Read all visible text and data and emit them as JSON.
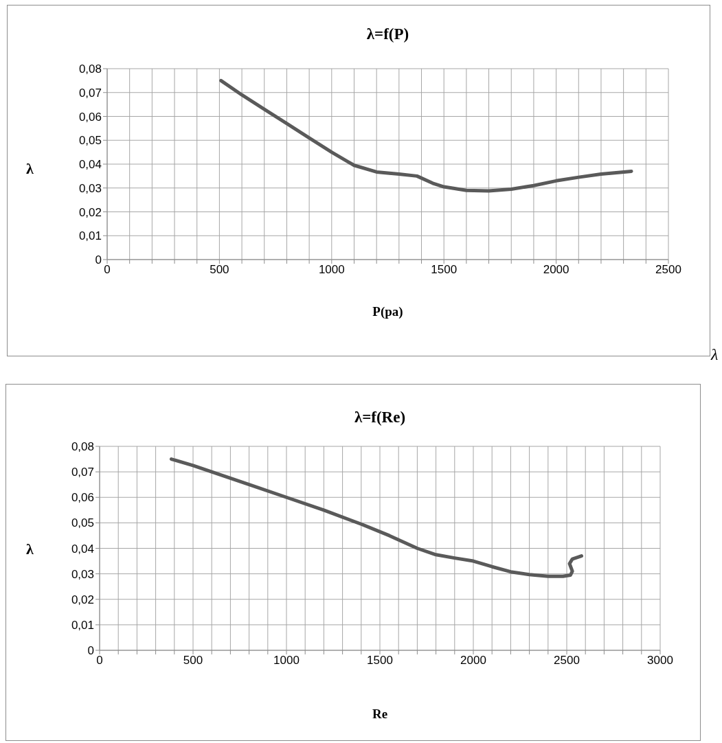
{
  "chart_data": [
    {
      "type": "line",
      "title": "λ=f(P)",
      "xlabel": "P(pa)",
      "ylabel": "λ",
      "annotations": [
        "λ"
      ],
      "color": "#5a5a5a",
      "marker": "none",
      "grid": true,
      "x": [
        507,
        600,
        700,
        800,
        900,
        1000,
        1100,
        1200,
        1300,
        1380,
        1450,
        1500,
        1600,
        1700,
        1800,
        1900,
        2000,
        2100,
        2200,
        2335
      ],
      "values": [
        0.075,
        0.069,
        0.063,
        0.057,
        0.051,
        0.045,
        0.0395,
        0.0367,
        0.0358,
        0.035,
        0.032,
        0.0305,
        0.029,
        0.0288,
        0.0295,
        0.031,
        0.033,
        0.0345,
        0.0358,
        0.037
      ],
      "xlim": [
        0,
        2500
      ],
      "xticks": [
        0,
        {
          "value": 100,
          "label": null
        },
        {
          "value": 200,
          "label": null
        },
        {
          "value": 300,
          "label": null
        },
        {
          "value": 400,
          "label": null
        },
        500,
        {
          "value": 600,
          "label": null
        },
        {
          "value": 700,
          "label": null
        },
        {
          "value": 800,
          "label": null
        },
        {
          "value": 900,
          "label": null
        },
        1000,
        {
          "value": 1100,
          "label": null
        },
        {
          "value": 1200,
          "label": null
        },
        {
          "value": 1300,
          "label": null
        },
        {
          "value": 1400,
          "label": null
        },
        1500,
        {
          "value": 1600,
          "label": null
        },
        {
          "value": 1700,
          "label": null
        },
        {
          "value": 1800,
          "label": null
        },
        {
          "value": 1900,
          "label": null
        },
        2000,
        {
          "value": 2100,
          "label": null
        },
        {
          "value": 2200,
          "label": null
        },
        {
          "value": 2300,
          "label": null
        },
        {
          "value": 2400,
          "label": null
        },
        2500
      ],
      "ylim": [
        0,
        0.08
      ],
      "yticks": [
        0,
        {
          "value": 0.01,
          "label": "0,01"
        },
        {
          "value": 0.02,
          "label": "0,02"
        },
        {
          "value": 0.03,
          "label": "0,03"
        },
        {
          "value": 0.04,
          "label": "0,04"
        },
        {
          "value": 0.05,
          "label": "0,05"
        },
        {
          "value": 0.06,
          "label": "0,06"
        },
        {
          "value": 0.07,
          "label": "0,07"
        },
        {
          "value": 0.08,
          "label": "0,08"
        }
      ]
    },
    {
      "type": "line",
      "title": "λ=f(Re)",
      "xlabel": "Re",
      "ylabel": "λ",
      "color": "#5a5a5a",
      "marker": "none",
      "grid": true,
      "x": [
        384,
        500,
        600,
        800,
        1000,
        1200,
        1400,
        1550,
        1700,
        1800,
        1900,
        2000,
        2100,
        2200,
        2300,
        2400,
        2480,
        2520,
        2530,
        2515,
        2530,
        2579
      ],
      "values": [
        0.075,
        0.0725,
        0.07,
        0.065,
        0.06,
        0.055,
        0.0495,
        0.045,
        0.04,
        0.0375,
        0.0362,
        0.035,
        0.0328,
        0.0308,
        0.0297,
        0.029,
        0.029,
        0.0295,
        0.031,
        0.034,
        0.0358,
        0.037
      ],
      "xlim": [
        0,
        3000
      ],
      "xticks": [
        0,
        {
          "value": 100,
          "label": null
        },
        {
          "value": 200,
          "label": null
        },
        {
          "value": 300,
          "label": null
        },
        {
          "value": 400,
          "label": null
        },
        500,
        {
          "value": 600,
          "label": null
        },
        {
          "value": 700,
          "label": null
        },
        {
          "value": 800,
          "label": null
        },
        {
          "value": 900,
          "label": null
        },
        1000,
        {
          "value": 1100,
          "label": null
        },
        {
          "value": 1200,
          "label": null
        },
        {
          "value": 1300,
          "label": null
        },
        {
          "value": 1400,
          "label": null
        },
        1500,
        {
          "value": 1600,
          "label": null
        },
        {
          "value": 1700,
          "label": null
        },
        {
          "value": 1800,
          "label": null
        },
        {
          "value": 1900,
          "label": null
        },
        2000,
        {
          "value": 2100,
          "label": null
        },
        {
          "value": 2200,
          "label": null
        },
        {
          "value": 2300,
          "label": null
        },
        {
          "value": 2400,
          "label": null
        },
        2500,
        {
          "value": 2600,
          "label": null
        },
        {
          "value": 2700,
          "label": null
        },
        {
          "value": 2800,
          "label": null
        },
        {
          "value": 2900,
          "label": null
        },
        3000
      ],
      "ylim": [
        0,
        0.08
      ],
      "yticks": [
        0,
        {
          "value": 0.01,
          "label": "0,01"
        },
        {
          "value": 0.02,
          "label": "0,02"
        },
        {
          "value": 0.03,
          "label": "0,03"
        },
        {
          "value": 0.04,
          "label": "0,04"
        },
        {
          "value": 0.05,
          "label": "0,05"
        },
        {
          "value": 0.06,
          "label": "0,06"
        },
        {
          "value": 0.07,
          "label": "0,07"
        },
        {
          "value": 0.08,
          "label": "0,08"
        }
      ]
    }
  ]
}
